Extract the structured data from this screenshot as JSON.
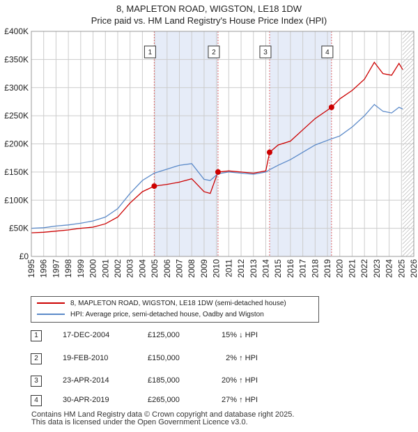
{
  "title_line1": "8, MAPLETON ROAD, WIGSTON, LE18 1DW",
  "title_line2": "Price paid vs. HM Land Registry's House Price Index (HPI)",
  "chart_data": {
    "type": "line",
    "y_ticks": [
      "£0",
      "£50K",
      "£100K",
      "£150K",
      "£200K",
      "£250K",
      "£300K",
      "£350K",
      "£400K"
    ],
    "y_values": [
      0,
      50000,
      100000,
      150000,
      200000,
      250000,
      300000,
      350000,
      400000
    ],
    "ylim": [
      0,
      400000
    ],
    "xlim": [
      1995,
      2026
    ],
    "x_ticks": [
      "1995",
      "1996",
      "1997",
      "1998",
      "1999",
      "2000",
      "2001",
      "2002",
      "2003",
      "2004",
      "2005",
      "2006",
      "2007",
      "2008",
      "2009",
      "2010",
      "2011",
      "2012",
      "2013",
      "2014",
      "2015",
      "2016",
      "2017",
      "2018",
      "2019",
      "2020",
      "2021",
      "2022",
      "2023",
      "2024",
      "2025",
      "2026"
    ],
    "grid": true,
    "series": [
      {
        "name": "8, MAPLETON ROAD, WIGSTON, LE18 1DW (semi-detached house)",
        "color": "#cc0000",
        "points": [
          [
            1995.0,
            42000
          ],
          [
            1996.0,
            43000
          ],
          [
            1997.0,
            45000
          ],
          [
            1998.0,
            47000
          ],
          [
            1999.0,
            50000
          ],
          [
            2000.0,
            52000
          ],
          [
            2001.0,
            58000
          ],
          [
            2002.0,
            70000
          ],
          [
            2003.0,
            95000
          ],
          [
            2004.0,
            115000
          ],
          [
            2004.96,
            125000
          ],
          [
            2006.0,
            128000
          ],
          [
            2007.0,
            132000
          ],
          [
            2008.0,
            138000
          ],
          [
            2009.0,
            115000
          ],
          [
            2009.5,
            112000
          ],
          [
            2010.13,
            150000
          ],
          [
            2011.0,
            152000
          ],
          [
            2012.0,
            150000
          ],
          [
            2013.0,
            148000
          ],
          [
            2014.0,
            152000
          ],
          [
            2014.31,
            185000
          ],
          [
            2015.0,
            198000
          ],
          [
            2016.0,
            205000
          ],
          [
            2017.0,
            225000
          ],
          [
            2018.0,
            245000
          ],
          [
            2019.33,
            265000
          ],
          [
            2020.0,
            280000
          ],
          [
            2021.0,
            295000
          ],
          [
            2022.0,
            315000
          ],
          [
            2022.8,
            345000
          ],
          [
            2023.5,
            325000
          ],
          [
            2024.2,
            322000
          ],
          [
            2024.8,
            343000
          ],
          [
            2025.1,
            332000
          ]
        ]
      },
      {
        "name": "HPI: Average price, semi-detached house, Oadby and Wigston",
        "color": "#5b8ac9",
        "points": [
          [
            1995.0,
            50000
          ],
          [
            1996.0,
            51000
          ],
          [
            1997.0,
            54000
          ],
          [
            1998.0,
            56000
          ],
          [
            1999.0,
            59000
          ],
          [
            2000.0,
            63000
          ],
          [
            2001.0,
            70000
          ],
          [
            2002.0,
            85000
          ],
          [
            2003.0,
            112000
          ],
          [
            2004.0,
            135000
          ],
          [
            2004.96,
            148000
          ],
          [
            2006.0,
            155000
          ],
          [
            2007.0,
            162000
          ],
          [
            2008.0,
            165000
          ],
          [
            2009.0,
            137000
          ],
          [
            2009.5,
            135000
          ],
          [
            2010.13,
            147000
          ],
          [
            2011.0,
            150000
          ],
          [
            2012.0,
            148000
          ],
          [
            2013.0,
            146000
          ],
          [
            2014.0,
            150000
          ],
          [
            2014.31,
            154000
          ],
          [
            2015.0,
            162000
          ],
          [
            2016.0,
            172000
          ],
          [
            2017.0,
            185000
          ],
          [
            2018.0,
            198000
          ],
          [
            2019.33,
            209000
          ],
          [
            2020.0,
            214000
          ],
          [
            2021.0,
            230000
          ],
          [
            2022.0,
            250000
          ],
          [
            2022.8,
            270000
          ],
          [
            2023.5,
            258000
          ],
          [
            2024.2,
            255000
          ],
          [
            2024.8,
            265000
          ],
          [
            2025.1,
            262000
          ]
        ]
      }
    ],
    "markers": [
      {
        "label": "1",
        "x": 2004.96,
        "y": 125000
      },
      {
        "label": "2",
        "x": 2010.13,
        "y": 150000
      },
      {
        "label": "3",
        "x": 2014.31,
        "y": 185000
      },
      {
        "label": "4",
        "x": 2019.33,
        "y": 265000
      }
    ],
    "shaded_ranges": [
      [
        2004.96,
        2010.13
      ],
      [
        2014.31,
        2019.33
      ]
    ],
    "hatch_from": 2025.08
  },
  "legend": {
    "item1": "8, MAPLETON ROAD, WIGSTON, LE18 1DW (semi-detached house)",
    "item2": "HPI: Average price, semi-detached house, Oadby and Wigston"
  },
  "sales": [
    {
      "num": "1",
      "date": "17-DEC-2004",
      "price": "£125,000",
      "hpi": "15% ↓ HPI"
    },
    {
      "num": "2",
      "date": "19-FEB-2010",
      "price": "£150,000",
      "hpi": "2% ↑ HPI"
    },
    {
      "num": "3",
      "date": "23-APR-2014",
      "price": "£185,000",
      "hpi": "20% ↑ HPI"
    },
    {
      "num": "4",
      "date": "30-APR-2019",
      "price": "£265,000",
      "hpi": "27% ↑ HPI"
    }
  ],
  "footer_line1": "Contains HM Land Registry data © Crown copyright and database right 2025.",
  "footer_line2": "This data is licensed under the Open Government Licence v3.0."
}
